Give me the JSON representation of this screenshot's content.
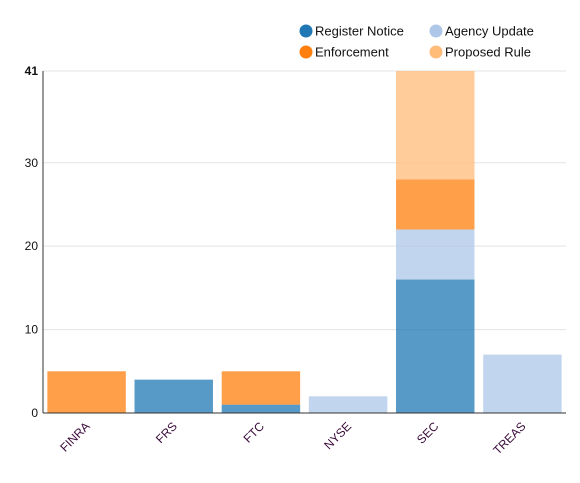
{
  "chart_data": {
    "type": "bar",
    "stacked": true,
    "categories": [
      "FINRA",
      "FRS",
      "FTC",
      "NYSE",
      "SEC",
      "TREAS"
    ],
    "series": [
      {
        "name": "Register Notice",
        "color": "#1f77b4",
        "values": [
          0,
          4,
          1,
          0,
          16,
          0
        ]
      },
      {
        "name": "Agency Update",
        "color": "#aec7e8",
        "values": [
          0,
          0,
          0,
          2,
          6,
          7
        ]
      },
      {
        "name": "Enforcement",
        "color": "#ff7f0e",
        "values": [
          5,
          0,
          4,
          0,
          6,
          0
        ]
      },
      {
        "name": "Proposed Rule",
        "color": "#ffbb78",
        "values": [
          0,
          0,
          0,
          0,
          13,
          0
        ]
      }
    ],
    "yticks": [
      "0",
      "10",
      "20",
      "30",
      "41"
    ],
    "ylim": [
      0,
      41
    ],
    "grid": true,
    "legend": "top-right",
    "bar_opacity": 0.75
  }
}
